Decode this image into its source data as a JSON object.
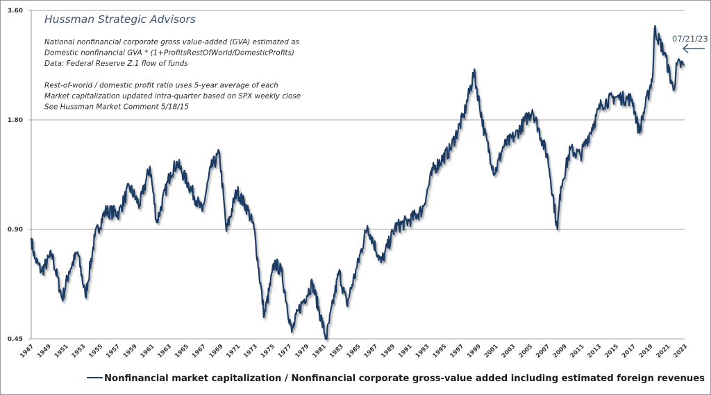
{
  "chart_data": {
    "type": "line",
    "title": "Hussman Strategic Advisors",
    "notes": [
      "National nonfinancial corporate gross value-added (GVA) estimated as",
      "Domestic nonfinancial GVA * (1+ProfitsRestOfWorld/DomesticProfits)",
      "Data: Federal Reserve Z.1 flow of funds",
      "",
      "Rest-of-world / domestic profit ratio uses 5-year average of each",
      "Market capitalization updated intra-quarter based on SPX weekly close",
      "See Hussman Market Comment 5/18/15"
    ],
    "xlabel": "",
    "ylabel": "",
    "yscale": "log2",
    "ylim": [
      0.45,
      3.6
    ],
    "yticks": [
      "3.60",
      "1.80",
      "0.90",
      "0.45"
    ],
    "ytick_values": [
      3.6,
      1.8,
      0.9,
      0.45
    ],
    "xlim": [
      1947,
      2024
    ],
    "xticks": [
      "1947",
      "1949",
      "1951",
      "1953",
      "1955",
      "1957",
      "1959",
      "1961",
      "1963",
      "1965",
      "1967",
      "1969",
      "1971",
      "1973",
      "1975",
      "1977",
      "1979",
      "1981",
      "1983",
      "1985",
      "1987",
      "1989",
      "1991",
      "1993",
      "1995",
      "1997",
      "1999",
      "2001",
      "2003",
      "2005",
      "2007",
      "2009",
      "2011",
      "2013",
      "2015",
      "2017",
      "2019",
      "2021",
      "2023"
    ],
    "grid": "horizontal",
    "annotation": {
      "text": "07/21/23",
      "points_to": "latest value",
      "value": 2.55
    },
    "legend": {
      "position": "bottom",
      "entries": [
        "Nonfinancial market capitalization / Nonfinancial corporate gross-value added including estimated foreign revenues"
      ]
    },
    "series": [
      {
        "name": "Nonfinancial market capitalization / Nonfinancial corporate gross-value added including estimated foreign revenues",
        "color": "#1f3b63",
        "x": [
          1947.0,
          1947.4,
          1948.2,
          1949.4,
          1950.6,
          1951.4,
          1952.4,
          1953.3,
          1954.4,
          1955.6,
          1957.2,
          1958.4,
          1959.6,
          1960.8,
          1961.6,
          1963.2,
          1964.0,
          1966.9,
          1967.9,
          1968.9,
          1969.7,
          1970.9,
          1972.1,
          1972.9,
          1974.1,
          1975.3,
          1976.1,
          1977.3,
          1978.1,
          1979.7,
          1981.3,
          1982.8,
          1983.7,
          1984.9,
          1986.1,
          1987.7,
          1988.1,
          1989.3,
          1990.9,
          1992.5,
          1993.7,
          1995.7,
          1997.3,
          1998.5,
          1999.7,
          2000.9,
          2001.9,
          2003.3,
          2005.3,
          2007.1,
          2008.2,
          2008.6,
          2009.7,
          2010.9,
          2012.5,
          2013.3,
          2014.9,
          2016.9,
          2017.7,
          2019.3,
          2019.5,
          2020.7,
          2021.7,
          2022.1,
          2022.9
        ],
        "values": [
          0.85,
          0.75,
          0.69,
          0.77,
          0.58,
          0.69,
          0.78,
          0.59,
          0.86,
          1.01,
          1.0,
          1.18,
          1.05,
          1.34,
          0.94,
          1.29,
          1.37,
          1.01,
          1.33,
          1.45,
          0.89,
          1.15,
          1.03,
          0.91,
          0.52,
          0.73,
          0.69,
          0.47,
          0.54,
          0.64,
          0.45,
          0.69,
          0.56,
          0.71,
          0.92,
          0.73,
          0.77,
          0.91,
          0.95,
          1.02,
          1.31,
          1.49,
          1.85,
          2.43,
          1.67,
          1.28,
          1.52,
          1.63,
          1.92,
          1.41,
          0.9,
          1.18,
          1.49,
          1.44,
          1.78,
          1.99,
          2.08,
          2.05,
          1.67,
          2.39,
          3.2,
          2.73,
          2.17,
          2.55,
          2.55
        ]
      }
    ]
  }
}
